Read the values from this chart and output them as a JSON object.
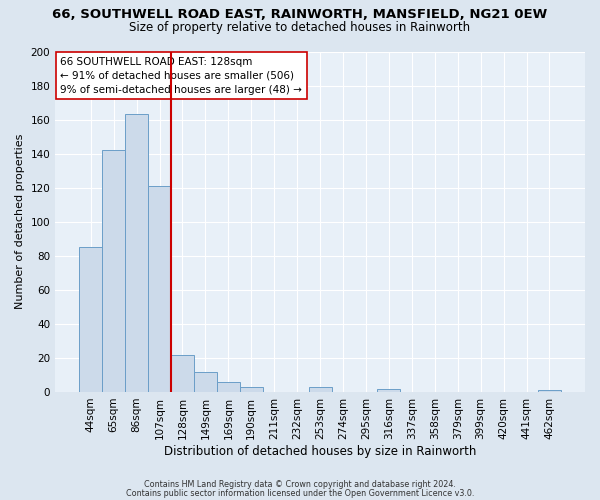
{
  "title1": "66, SOUTHWELL ROAD EAST, RAINWORTH, MANSFIELD, NG21 0EW",
  "title2": "Size of property relative to detached houses in Rainworth",
  "xlabel": "Distribution of detached houses by size in Rainworth",
  "ylabel": "Number of detached properties",
  "bin_labels": [
    "44sqm",
    "65sqm",
    "86sqm",
    "107sqm",
    "128sqm",
    "149sqm",
    "169sqm",
    "190sqm",
    "211sqm",
    "232sqm",
    "253sqm",
    "274sqm",
    "295sqm",
    "316sqm",
    "337sqm",
    "358sqm",
    "379sqm",
    "399sqm",
    "420sqm",
    "441sqm",
    "462sqm"
  ],
  "bar_values": [
    85,
    142,
    163,
    121,
    22,
    12,
    6,
    3,
    0,
    0,
    3,
    0,
    0,
    2,
    0,
    0,
    0,
    0,
    0,
    0,
    1
  ],
  "bar_color": "#ccdaea",
  "bar_edge_color": "#6b9ec8",
  "vline_color": "#cc0000",
  "annotation_line1": "66 SOUTHWELL ROAD EAST: 128sqm",
  "annotation_line2": "← 91% of detached houses are smaller (506)",
  "annotation_line3": "9% of semi-detached houses are larger (48) →",
  "annotation_box_facecolor": "#ffffff",
  "annotation_box_edgecolor": "#cc0000",
  "ylim": [
    0,
    200
  ],
  "yticks": [
    0,
    20,
    40,
    60,
    80,
    100,
    120,
    140,
    160,
    180,
    200
  ],
  "footer1": "Contains HM Land Registry data © Crown copyright and database right 2024.",
  "footer2": "Contains public sector information licensed under the Open Government Licence v3.0.",
  "bg_color": "#dce6f0",
  "plot_bg_color": "#e8f0f8",
  "title1_fontsize": 9.5,
  "title2_fontsize": 8.5,
  "xlabel_fontsize": 8.5,
  "ylabel_fontsize": 8.0,
  "tick_fontsize": 7.5,
  "annotation_fontsize": 7.5,
  "footer_fontsize": 5.8
}
